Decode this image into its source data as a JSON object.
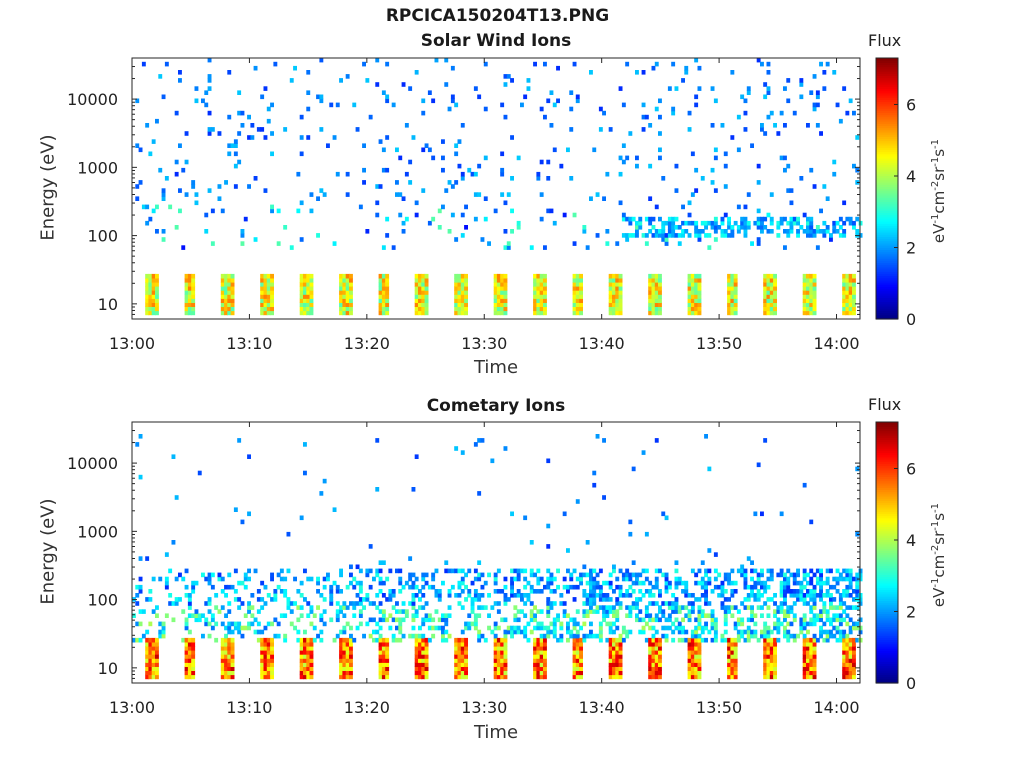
{
  "figure": {
    "title": "RPCICA150204T13.PNG"
  },
  "chart_data": [
    {
      "type": "heatmap",
      "title": "Solar Wind Ions",
      "xlabel": "Time",
      "ylabel": "Energy (eV)",
      "x_ticks": [
        "13:00",
        "13:10",
        "13:20",
        "13:30",
        "13:40",
        "13:50",
        "14:00"
      ],
      "x_range_minutes": [
        0,
        62
      ],
      "y_scale": "log",
      "y_ticks": [
        10,
        100,
        1000,
        10000
      ],
      "y_tick_labels": [
        "10",
        "100",
        "1000",
        "10000"
      ],
      "y_range": [
        6,
        40000
      ],
      "colorbar": {
        "label": "Flux",
        "unit": "eV-1cm-2sr-1s-1",
        "range": [
          0,
          7.3
        ],
        "ticks": [
          "0",
          "2",
          "4",
          "6"
        ],
        "colormap": "jet"
      },
      "features": {
        "low_energy_bursts": {
          "energy_range_eV": [
            7,
            28
          ],
          "peak_flux": 5.5,
          "interval_min": 3.3
        },
        "solar_wind_band": {
          "energy_range_eV": [
            90,
            200
          ],
          "peak_flux": 3.0,
          "start_min": 42
        },
        "sparse_high_energy_counts": {
          "energy_range_eV": [
            300,
            40000
          ],
          "flux": 1.5
        }
      }
    },
    {
      "type": "heatmap",
      "title": "Cometary Ions",
      "xlabel": "Time",
      "ylabel": "Energy (eV)",
      "x_ticks": [
        "13:00",
        "13:10",
        "13:20",
        "13:30",
        "13:40",
        "13:50",
        "14:00"
      ],
      "x_range_minutes": [
        0,
        62
      ],
      "y_scale": "log",
      "y_ticks": [
        10,
        100,
        1000,
        10000
      ],
      "y_tick_labels": [
        "10",
        "100",
        "1000",
        "10000"
      ],
      "y_range": [
        6,
        40000
      ],
      "colorbar": {
        "label": "Flux",
        "unit": "eV-1cm-2sr-1s-1",
        "range": [
          0,
          7.3
        ],
        "ticks": [
          "0",
          "2",
          "4",
          "6"
        ],
        "colormap": "jet"
      },
      "features": {
        "low_energy_bursts": {
          "energy_range_eV": [
            7,
            28
          ],
          "peak_flux": 6.8,
          "interval_min": 3.3
        },
        "broad_band": {
          "energy_range_eV": [
            25,
            300
          ],
          "peak_flux": 4.0
        },
        "sparse_high_energy_counts": {
          "energy_range_eV": [
            300,
            25000
          ],
          "flux": 1.5
        }
      }
    }
  ],
  "colors": {
    "axis": "#262626",
    "text": "#222222"
  }
}
